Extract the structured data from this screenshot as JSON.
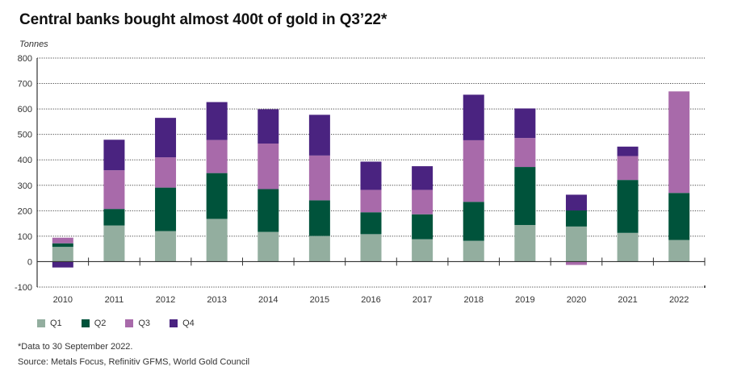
{
  "chart_data": {
    "type": "bar",
    "stacked": true,
    "title": "Central banks bought almost 400t of gold in Q3’22*",
    "ylabel": "Tonnes",
    "xlabel": "",
    "ylim": [
      -100,
      800
    ],
    "yticks": [
      -100,
      0,
      100,
      200,
      300,
      400,
      500,
      600,
      700,
      800
    ],
    "grid": true,
    "legend_position": "bottom-left",
    "categories": [
      "2010",
      "2011",
      "2012",
      "2013",
      "2014",
      "2015",
      "2016",
      "2017",
      "2018",
      "2019",
      "2020",
      "2021",
      "2022"
    ],
    "series": [
      {
        "name": "Q1",
        "color": "#93ae9f",
        "values": [
          58,
          142,
          120,
          168,
          117,
          101,
          108,
          88,
          82,
          144,
          138,
          113,
          85
        ]
      },
      {
        "name": "Q2",
        "color": "#00533b",
        "values": [
          14,
          65,
          171,
          180,
          168,
          140,
          86,
          98,
          153,
          228,
          63,
          208,
          185
        ]
      },
      {
        "name": "Q3",
        "color": "#a86aaa",
        "values": [
          22,
          152,
          119,
          130,
          179,
          176,
          88,
          96,
          242,
          114,
          -13,
          94,
          399
        ]
      },
      {
        "name": "Q4",
        "color": "#4a2380",
        "values": [
          -23,
          120,
          155,
          149,
          135,
          160,
          111,
          93,
          179,
          116,
          62,
          37,
          null
        ]
      }
    ]
  },
  "footnote": "*Data to 30 September 2022.",
  "source": "Source: Metals Focus, Refinitiv GFMS, World Gold Council"
}
